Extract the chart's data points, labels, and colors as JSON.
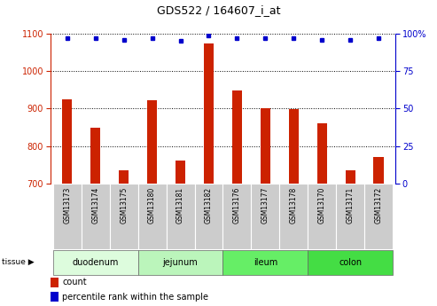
{
  "title": "GDS522 / 164607_i_at",
  "samples": [
    "GSM13173",
    "GSM13174",
    "GSM13175",
    "GSM13180",
    "GSM13181",
    "GSM13182",
    "GSM13176",
    "GSM13177",
    "GSM13178",
    "GSM13170",
    "GSM13171",
    "GSM13172"
  ],
  "counts": [
    925,
    848,
    735,
    922,
    762,
    1075,
    948,
    900,
    898,
    862,
    735,
    770
  ],
  "percentiles": [
    97,
    97,
    96,
    97,
    95,
    99,
    97,
    97,
    97,
    96,
    96,
    97
  ],
  "ylim_left": [
    700,
    1100
  ],
  "ylim_right": [
    0,
    100
  ],
  "yticks_left": [
    700,
    800,
    900,
    1000,
    1100
  ],
  "yticks_right": [
    0,
    25,
    50,
    75,
    100
  ],
  "tissues": [
    {
      "label": "duodenum",
      "start": 0,
      "end": 3,
      "color": "#ddfcdd"
    },
    {
      "label": "jejunum",
      "start": 3,
      "end": 6,
      "color": "#bbf5bb"
    },
    {
      "label": "ileum",
      "start": 6,
      "end": 9,
      "color": "#66ee66"
    },
    {
      "label": "colon",
      "start": 9,
      "end": 12,
      "color": "#44dd44"
    }
  ],
  "bar_color": "#cc2200",
  "dot_color": "#0000cc",
  "left_axis_color": "#cc2200",
  "right_axis_color": "#0000cc",
  "bg_color": "#ffffff",
  "grid_color": "#000000",
  "sample_bg": "#cccccc",
  "tissue_border_color": "#666666"
}
